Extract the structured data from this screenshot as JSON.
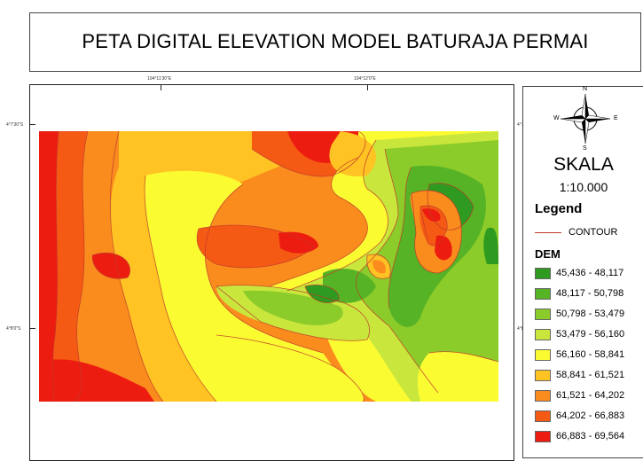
{
  "title": "PETA DIGITAL ELEVATION MODEL BATURAJA PERMAI",
  "map": {
    "grid_labels": {
      "lon_1": "104°11'30\"E",
      "lon_2": "104°12'0\"E",
      "lat_1": "4°7'30\"S",
      "lat_2": "4°8'0\"S"
    }
  },
  "legend": {
    "north_labels": {
      "n": "N",
      "s": "S",
      "e": "E",
      "w": "W"
    },
    "skala_title": "SKALA",
    "skala_value": "1:10.000",
    "legend_title": "Legend",
    "contour_label": "CONTOUR",
    "dem_title": "DEM",
    "contour_color": "#c0392b",
    "dem_classes": [
      {
        "label": "45,436 - 48,117",
        "color": "#2e9a1f"
      },
      {
        "label": "48,117 - 50,798",
        "color": "#57b326"
      },
      {
        "label": "50,798 - 53,479",
        "color": "#8ccc2a"
      },
      {
        "label": "53,479 - 56,160",
        "color": "#c9e63c"
      },
      {
        "label": "56,160 - 58,841",
        "color": "#fbfb32"
      },
      {
        "label": "58,841 - 61,521",
        "color": "#ffc323"
      },
      {
        "label": "61,521 - 64,202",
        "color": "#fa8c1e"
      },
      {
        "label": "64,202 - 66,883",
        "color": "#f55a14"
      },
      {
        "label": "66,883 - 69,564",
        "color": "#ed1c10"
      }
    ]
  }
}
